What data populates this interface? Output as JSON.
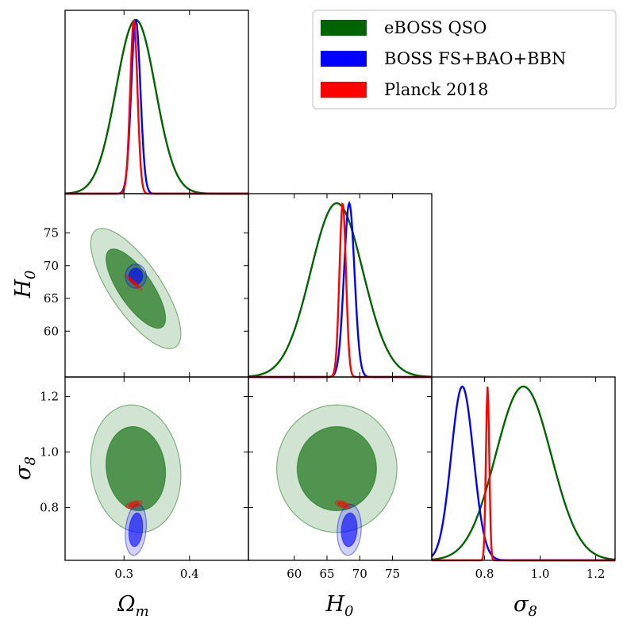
{
  "chart_data": {
    "type": "triangle",
    "parameters": [
      {
        "symbol": "Ω",
        "subscript": "m",
        "range": [
          0.21,
          0.49
        ],
        "ticks": [
          0.3,
          0.4
        ],
        "tick_labels": [
          "0.3",
          "0.4"
        ]
      },
      {
        "symbol": "H",
        "subscript": "0",
        "range": [
          53,
          81
        ],
        "ticks": [
          60,
          65,
          70,
          75
        ],
        "tick_labels": [
          "60",
          "65",
          "70",
          "75"
        ]
      },
      {
        "symbol": "σ",
        "subscript": "8",
        "range": [
          0.61,
          1.27
        ],
        "ticks": [
          0.8,
          1.0,
          1.2
        ],
        "tick_labels": [
          "0.8",
          "1.0",
          "1.2"
        ]
      }
    ],
    "legend_position": "top-right",
    "grid": false,
    "series": [
      {
        "name": "eBOSS QSO",
        "color": "#006400",
        "fill_color": "#006400",
        "mean": [
          0.318,
          66.5,
          0.94
        ],
        "sigma": [
          0.03,
          4.0,
          0.1
        ],
        "corr": {
          "om_h0": -0.75,
          "om_s8": -0.1,
          "h0_s8": 0.0
        }
      },
      {
        "name": "BOSS FS+BAO+BBN",
        "color": "#0000ff",
        "fill_color": "#0000ff",
        "mean": [
          0.318,
          68.4,
          0.72
        ],
        "sigma": [
          0.007,
          0.8,
          0.04
        ],
        "corr": {
          "om_h0": 0.0,
          "om_s8": 0.2,
          "h0_s8": 0.1
        }
      },
      {
        "name": "Planck 2018",
        "color": "#ff0000",
        "fill_color": "#ff0000",
        "mean": [
          0.315,
          67.4,
          0.811
        ],
        "sigma": [
          0.0055,
          0.5,
          0.006
        ],
        "corr": {
          "om_h0": -0.95,
          "om_s8": 0.5,
          "h0_s8": -0.5
        }
      }
    ]
  }
}
